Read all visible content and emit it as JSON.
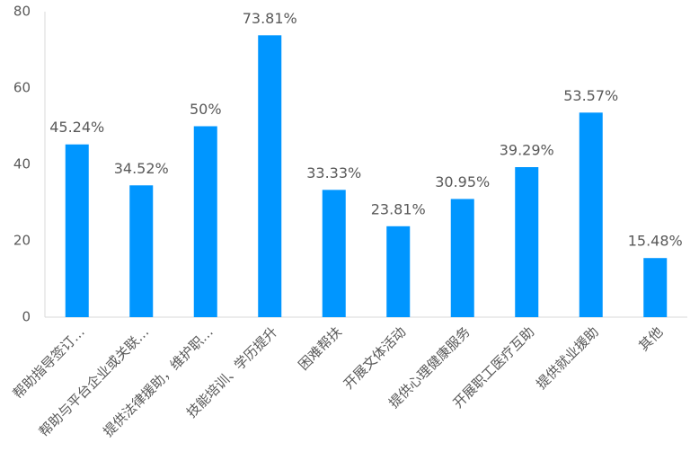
{
  "chart_data": {
    "type": "bar",
    "categories": [
      "帮助指导签订…",
      "帮助与平台企业或关联…",
      "提供法律援助，维护职…",
      "技能培训、学历提升",
      "困难帮扶",
      "开展文体活动",
      "提供心理健康服务",
      "开展职工医疗互助",
      "提供就业援助",
      "其他"
    ],
    "values": [
      45.24,
      34.52,
      50,
      73.81,
      33.33,
      23.81,
      30.95,
      39.29,
      53.57,
      15.48
    ],
    "value_labels": [
      "45.24%",
      "34.52%",
      "50%",
      "73.81%",
      "33.33%",
      "23.81%",
      "30.95%",
      "39.29%",
      "53.57%",
      "15.48%"
    ],
    "color": "#0096ff",
    "ylim": [
      0,
      80
    ],
    "yticks": [
      0,
      20,
      40,
      60,
      80
    ],
    "grid": false
  }
}
